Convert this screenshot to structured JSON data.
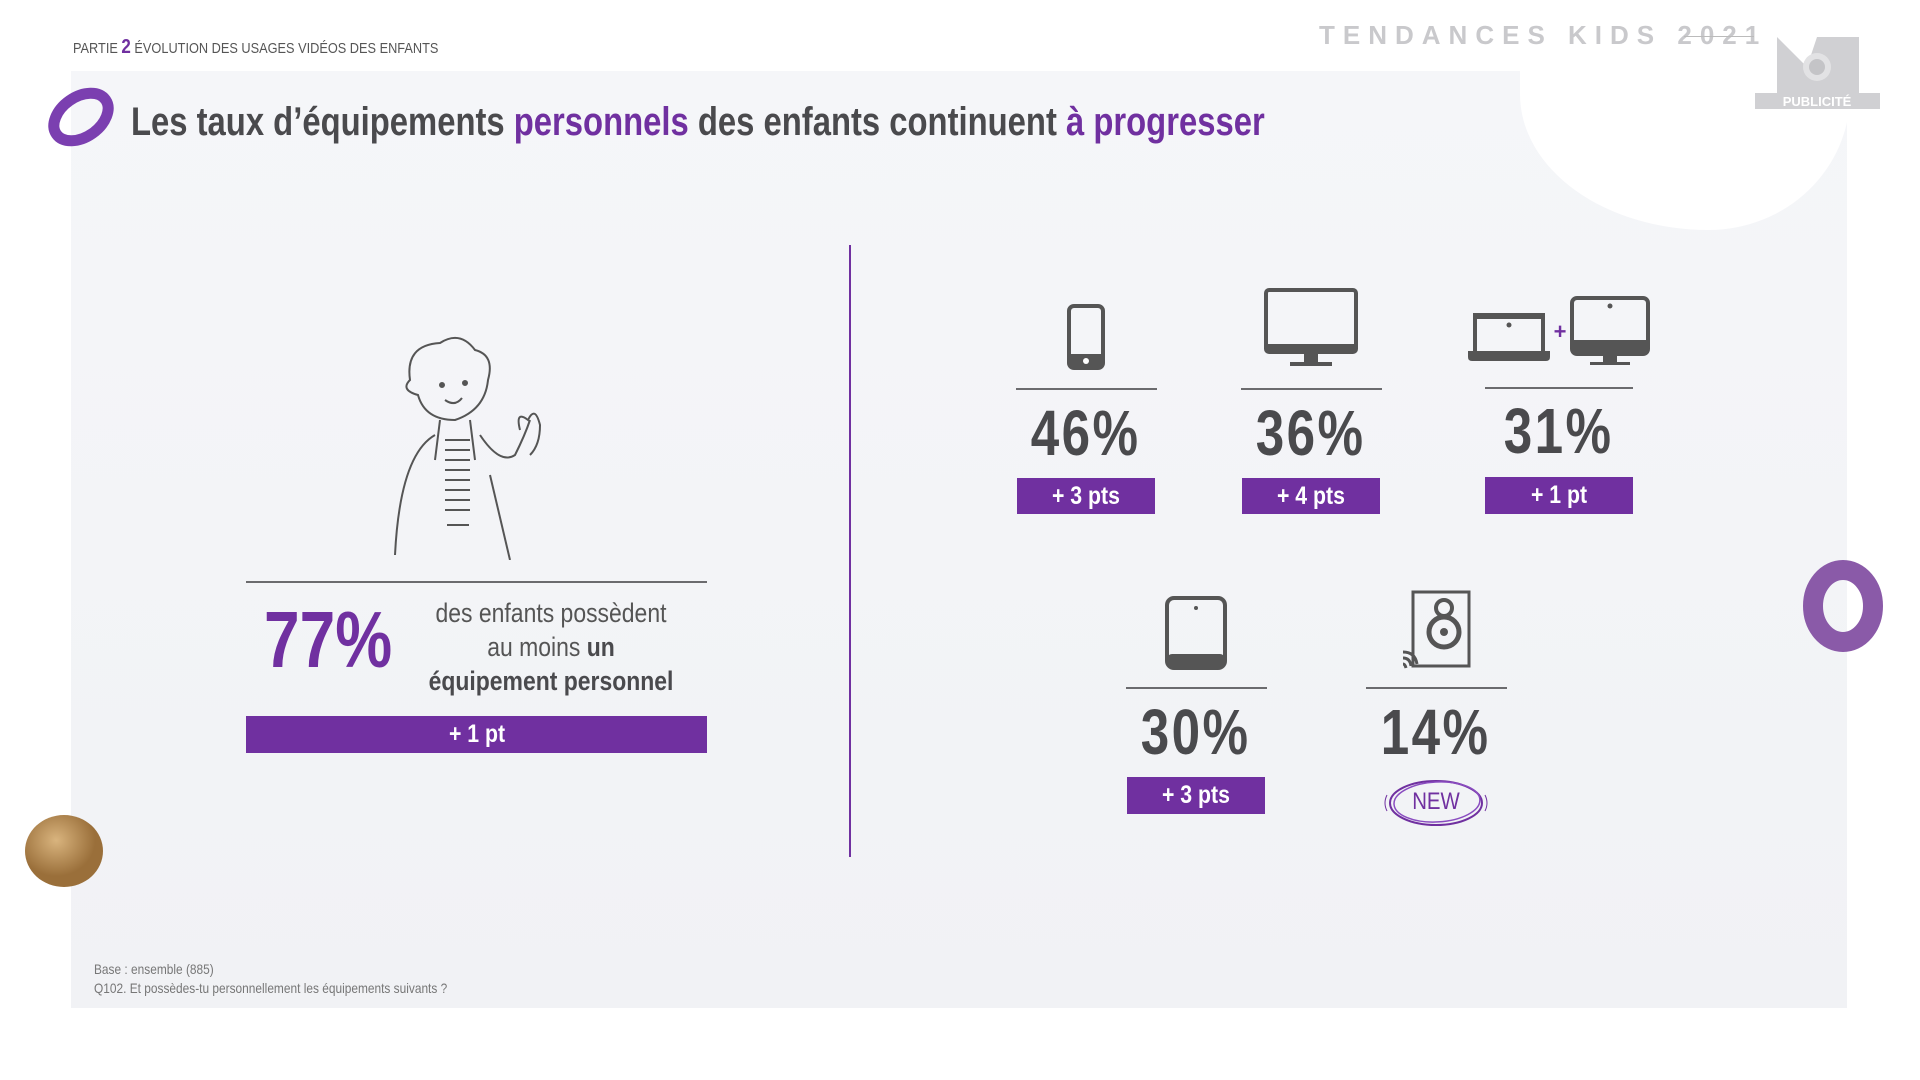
{
  "header": {
    "part_label": "PARTIE",
    "part_number": "2",
    "section": "ÉVOLUTION DES USAGES VIDÉOS DES ENFANTS",
    "brand": "TENDANCES KIDS 2021",
    "logo_text": "PUBLICITÉ"
  },
  "title": {
    "part1": "Les taux d’équipements ",
    "part2": "personnels",
    "part3": " des enfants continuent ",
    "part4": "à progresser"
  },
  "summary": {
    "value": "77%",
    "text_prefix": "des enfants possèdent au moins ",
    "text_bold": "un équipement personnel",
    "delta": "+ 1 pt"
  },
  "devices": [
    {
      "name": "smartphone",
      "icon": "smartphone-icon",
      "value": "46%",
      "delta": "+ 3 pts"
    },
    {
      "name": "tv",
      "icon": "tv-icon",
      "value": "36%",
      "delta": "+ 4 pts"
    },
    {
      "name": "computer",
      "icon": "laptop-plus-desktop-icon",
      "plus": "+",
      "value": "31%",
      "delta": "+ 1 pt"
    },
    {
      "name": "tablet",
      "icon": "tablet-icon",
      "value": "30%",
      "delta": "+ 3 pts"
    },
    {
      "name": "smart-speaker",
      "icon": "speaker-icon",
      "value": "14%",
      "badge": "NEW"
    }
  ],
  "footer": {
    "base": "Base : ensemble (885)",
    "question": "Q102. Et possèdes-tu personnellement les équipements suivants ?"
  },
  "colors": {
    "accent": "#7030a0",
    "text": "#4a4a4d"
  }
}
